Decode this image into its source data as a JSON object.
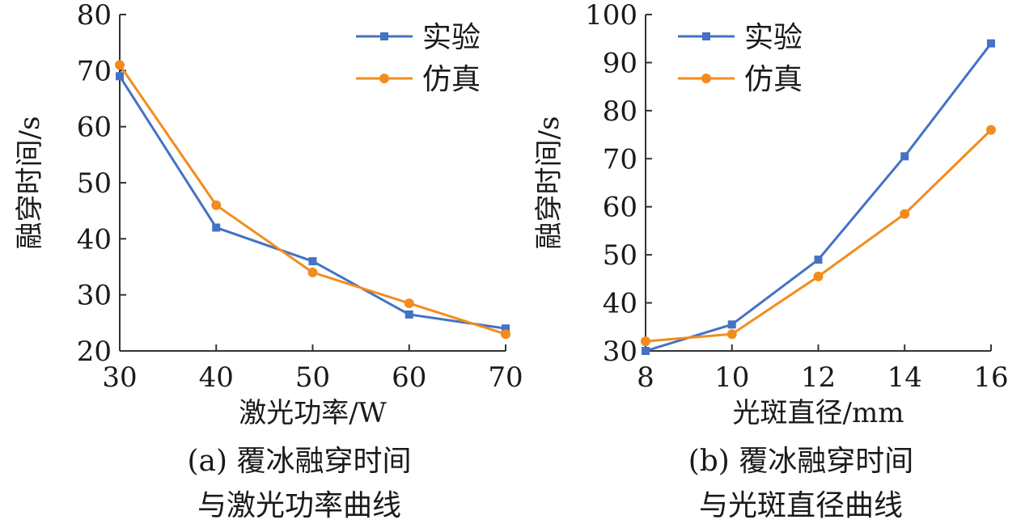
{
  "colors": {
    "experiment": "#4472C4",
    "simulation": "#F28C1E",
    "axis": "#333333"
  },
  "chart_data": [
    {
      "type": "line",
      "xlabel": "激光功率/W",
      "ylabel": "融穿时间/s",
      "caption_line1": "(a) 覆冰融穿时间",
      "caption_line2": "与激光功率曲线",
      "xlim": [
        30,
        70
      ],
      "ylim": [
        20,
        80
      ],
      "xticks": [
        30,
        40,
        50,
        60,
        70
      ],
      "yticks": [
        20,
        30,
        40,
        50,
        60,
        70,
        80
      ],
      "legend_position": "top-right",
      "grid": false,
      "series": [
        {
          "name": "实验",
          "marker": "square",
          "x": [
            30,
            40,
            50,
            60,
            70
          ],
          "y": [
            69,
            42,
            36,
            26.5,
            24
          ]
        },
        {
          "name": "仿真",
          "marker": "circle",
          "x": [
            30,
            40,
            50,
            60,
            70
          ],
          "y": [
            71,
            46,
            34,
            28.5,
            23
          ]
        }
      ]
    },
    {
      "type": "line",
      "xlabel": "光斑直径/mm",
      "ylabel": "融穿时间/s",
      "caption_line1": "(b) 覆冰融穿时间",
      "caption_line2": "与光斑直径曲线",
      "xlim": [
        8,
        16
      ],
      "ylim": [
        30,
        100
      ],
      "xticks": [
        8,
        10,
        12,
        14,
        16
      ],
      "yticks": [
        30,
        40,
        50,
        60,
        70,
        80,
        90,
        100
      ],
      "legend_position": "top-left",
      "grid": false,
      "series": [
        {
          "name": "实验",
          "marker": "square",
          "x": [
            8,
            10,
            12,
            14,
            16
          ],
          "y": [
            30,
            35.5,
            49,
            70.5,
            94
          ]
        },
        {
          "name": "仿真",
          "marker": "circle",
          "x": [
            8,
            10,
            12,
            14,
            16
          ],
          "y": [
            32,
            33.5,
            45.5,
            58.5,
            76
          ]
        }
      ]
    }
  ]
}
